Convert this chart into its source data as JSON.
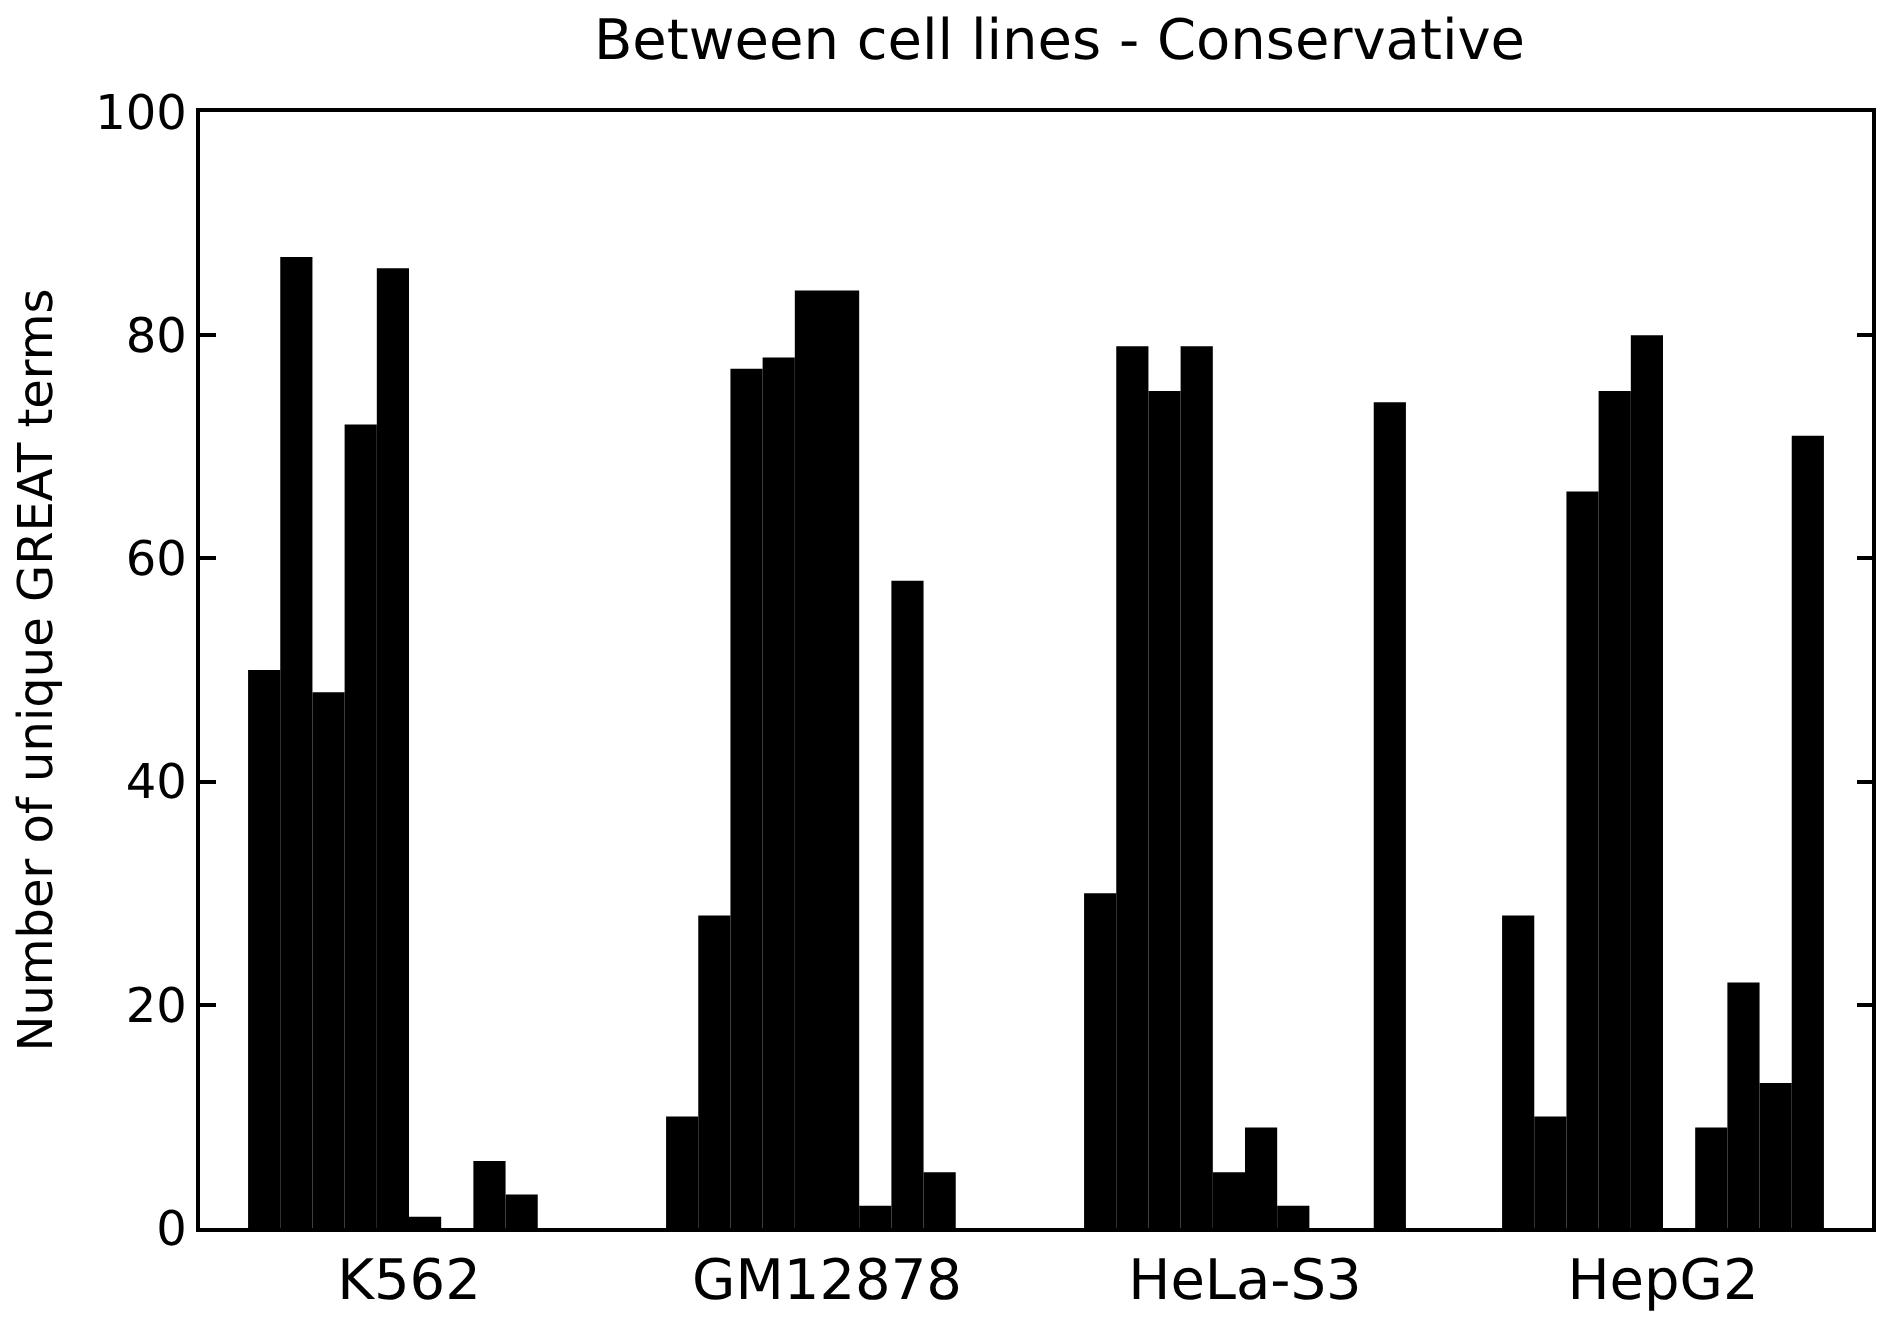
{
  "chart_data": {
    "type": "bar",
    "title": "Between cell lines - Conservative",
    "ylabel": "Number of unique GREAT terms",
    "categories": [
      "K562",
      "GM12878",
      "HeLa-S3",
      "HepG2"
    ],
    "series": [
      {
        "color": "#000000",
        "values": [
          50,
          10,
          30,
          28
        ]
      },
      {
        "color": "#000000",
        "values": [
          87,
          28,
          79,
          10
        ]
      },
      {
        "color": "#000000",
        "values": [
          48,
          77,
          75,
          66
        ]
      },
      {
        "color": "#000000",
        "values": [
          72,
          78,
          79,
          75
        ]
      },
      {
        "color": "#000000",
        "values": [
          86,
          84,
          5,
          80
        ]
      },
      {
        "color": "#000000",
        "values": [
          1,
          84,
          9,
          0
        ]
      },
      {
        "color": "#000000",
        "values": [
          0,
          2,
          2,
          9
        ]
      },
      {
        "color": "#000000",
        "values": [
          6,
          58,
          0,
          22
        ]
      },
      {
        "color": "#000000",
        "values": [
          3,
          5,
          0,
          13
        ]
      },
      {
        "color": "#000000",
        "values": [
          0,
          0,
          74,
          71
        ]
      }
    ],
    "ylim": [
      0,
      100
    ],
    "yticks": [
      0,
      20,
      40,
      60,
      80,
      100
    ]
  }
}
